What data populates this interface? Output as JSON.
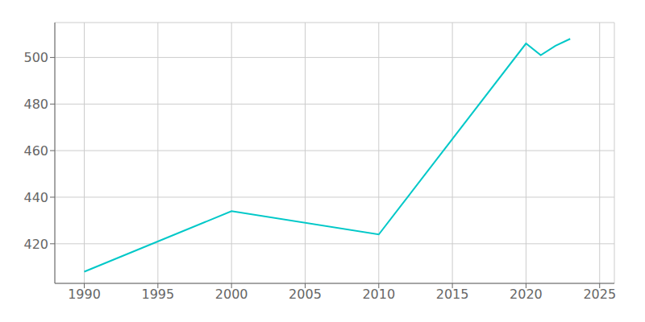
{
  "chart_data": {
    "type": "line",
    "x": [
      1990,
      2000,
      2010,
      2020,
      2021,
      2022,
      2023
    ],
    "values": [
      408,
      434,
      424,
      506,
      501,
      505,
      508
    ],
    "color": "#00c8c8",
    "xlim": [
      1988,
      2026
    ],
    "ylim": [
      403,
      515
    ],
    "xticks": [
      1990,
      1995,
      2000,
      2005,
      2010,
      2015,
      2020,
      2025
    ],
    "yticks": [
      420,
      440,
      460,
      480,
      500
    ],
    "grid": true
  }
}
